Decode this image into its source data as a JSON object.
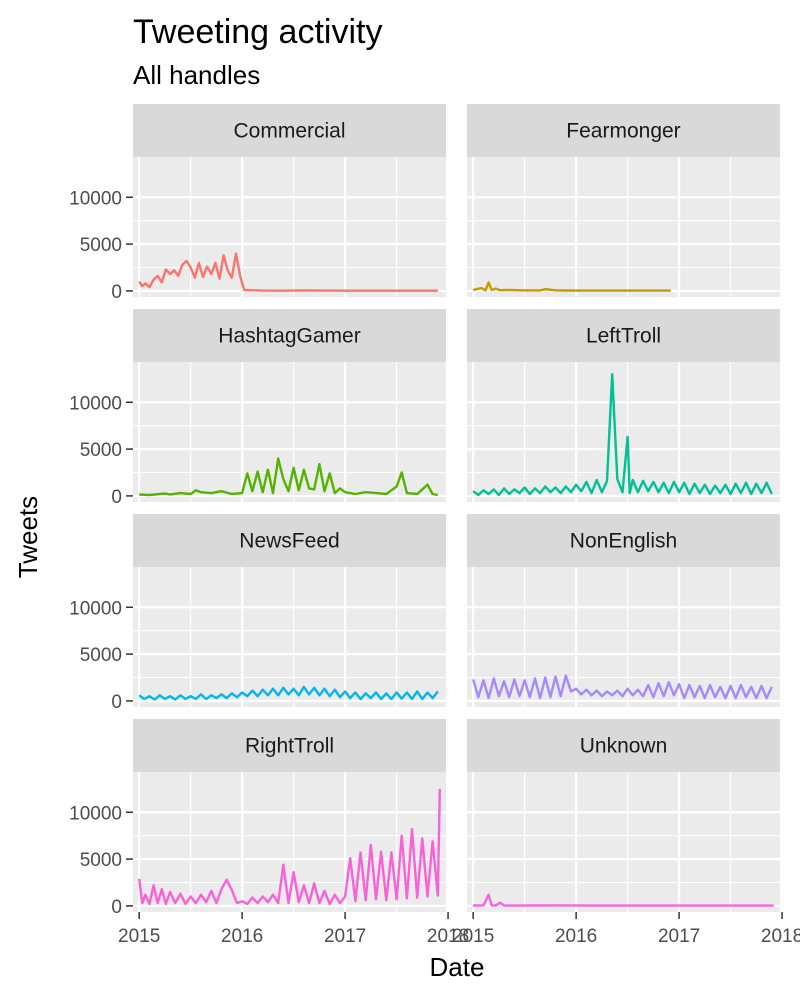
{
  "chart_data": {
    "type": "line",
    "title": "Tweeting activity",
    "subtitle": "All handles",
    "xlabel": "Date",
    "ylabel": "Tweets",
    "xlim": [
      2014.94,
      2017.98
    ],
    "ylim": [
      -650,
      14300
    ],
    "x_ticks": [
      2015,
      2016,
      2017,
      2018
    ],
    "x_tick_labels": [
      "2015",
      "2016",
      "2017",
      "2018"
    ],
    "y_ticks": [
      0,
      5000,
      10000
    ],
    "y_tick_labels": [
      "0",
      "5000",
      "10000"
    ],
    "grid": true,
    "legend": "none",
    "facet_layout": {
      "cols": 2,
      "rows": 4
    },
    "series": [
      {
        "name": "Commercial",
        "color": "#F8766D",
        "x": [
          2015.0,
          2015.03,
          2015.06,
          2015.1,
          2015.14,
          2015.18,
          2015.22,
          2015.26,
          2015.3,
          2015.34,
          2015.38,
          2015.42,
          2015.46,
          2015.5,
          2015.54,
          2015.58,
          2015.62,
          2015.66,
          2015.7,
          2015.74,
          2015.78,
          2015.82,
          2015.86,
          2015.9,
          2015.94,
          2015.98,
          2016.02,
          2016.2,
          2016.4,
          2016.6,
          2016.8,
          2017.0,
          2017.2,
          2017.4,
          2017.6,
          2017.8,
          2017.9
        ],
        "y": [
          1000,
          500,
          800,
          400,
          1200,
          1600,
          900,
          2300,
          1800,
          2200,
          1600,
          2800,
          3200,
          2500,
          1400,
          3000,
          1500,
          2600,
          1800,
          3000,
          1300,
          3800,
          2200,
          1400,
          4000,
          1600,
          100,
          30,
          20,
          60,
          30,
          20,
          20,
          20,
          20,
          20,
          20
        ]
      },
      {
        "name": "Fearmonger",
        "color": "#C49A00",
        "x": [
          2015.0,
          2015.08,
          2015.12,
          2015.15,
          2015.18,
          2015.22,
          2015.26,
          2015.35,
          2015.5,
          2015.65,
          2015.7,
          2015.8,
          2015.9,
          2016.0,
          2016.2,
          2016.4,
          2016.6,
          2016.8,
          2016.92
        ],
        "y": [
          100,
          300,
          60,
          900,
          100,
          250,
          80,
          100,
          50,
          60,
          180,
          70,
          40,
          30,
          30,
          30,
          30,
          30,
          30
        ]
      },
      {
        "name": "HashtagGamer",
        "color": "#53B400",
        "x": [
          2015.0,
          2015.1,
          2015.2,
          2015.25,
          2015.3,
          2015.4,
          2015.5,
          2015.55,
          2015.6,
          2015.7,
          2015.8,
          2015.9,
          2016.0,
          2016.05,
          2016.1,
          2016.15,
          2016.2,
          2016.25,
          2016.3,
          2016.35,
          2016.4,
          2016.45,
          2016.5,
          2016.55,
          2016.6,
          2016.65,
          2016.7,
          2016.75,
          2016.8,
          2016.85,
          2016.9,
          2016.95,
          2017.0,
          2017.1,
          2017.2,
          2017.3,
          2017.4,
          2017.5,
          2017.55,
          2017.6,
          2017.7,
          2017.8,
          2017.85,
          2017.9
        ],
        "y": [
          150,
          100,
          200,
          250,
          150,
          300,
          200,
          600,
          400,
          300,
          500,
          200,
          300,
          2400,
          500,
          2600,
          400,
          2800,
          300,
          4000,
          1800,
          500,
          3000,
          600,
          2800,
          800,
          700,
          3400,
          500,
          2400,
          300,
          800,
          400,
          200,
          400,
          300,
          200,
          1000,
          2500,
          300,
          200,
          1200,
          200,
          100
        ]
      },
      {
        "name": "LeftTroll",
        "color": "#00C094",
        "x": [
          2015.0,
          2015.05,
          2015.1,
          2015.15,
          2015.2,
          2015.25,
          2015.3,
          2015.35,
          2015.4,
          2015.45,
          2015.5,
          2015.55,
          2015.6,
          2015.65,
          2015.7,
          2015.75,
          2015.8,
          2015.85,
          2015.9,
          2015.95,
          2016.0,
          2016.05,
          2016.1,
          2016.15,
          2016.2,
          2016.25,
          2016.3,
          2016.35,
          2016.4,
          2016.45,
          2016.5,
          2016.52,
          2016.55,
          2016.6,
          2016.65,
          2016.7,
          2016.75,
          2016.8,
          2016.85,
          2016.9,
          2016.95,
          2017.0,
          2017.05,
          2017.1,
          2017.15,
          2017.2,
          2017.25,
          2017.3,
          2017.35,
          2017.4,
          2017.45,
          2017.5,
          2017.55,
          2017.6,
          2017.65,
          2017.7,
          2017.75,
          2017.8,
          2017.85,
          2017.9
        ],
        "y": [
          500,
          100,
          600,
          200,
          700,
          100,
          800,
          200,
          700,
          300,
          900,
          200,
          800,
          300,
          1000,
          400,
          900,
          300,
          1000,
          400,
          1200,
          500,
          1500,
          300,
          1700,
          400,
          1600,
          13000,
          1800,
          400,
          6300,
          300,
          1700,
          400,
          1600,
          500,
          1500,
          400,
          1400,
          300,
          1500,
          400,
          1400,
          200,
          1300,
          300,
          1200,
          200,
          1100,
          300,
          1200,
          200,
          1300,
          300,
          1400,
          200,
          1300,
          300,
          1400,
          200
        ]
      },
      {
        "name": "NewsFeed",
        "color": "#00B6EB",
        "x": [
          2015.0,
          2015.05,
          2015.1,
          2015.15,
          2015.2,
          2015.25,
          2015.3,
          2015.35,
          2015.4,
          2015.45,
          2015.5,
          2015.55,
          2015.6,
          2015.65,
          2015.7,
          2015.75,
          2015.8,
          2015.85,
          2015.9,
          2015.95,
          2016.0,
          2016.05,
          2016.1,
          2016.15,
          2016.2,
          2016.25,
          2016.3,
          2016.35,
          2016.4,
          2016.45,
          2016.5,
          2016.55,
          2016.6,
          2016.65,
          2016.7,
          2016.75,
          2016.8,
          2016.85,
          2016.9,
          2016.95,
          2017.0,
          2017.05,
          2017.1,
          2017.15,
          2017.2,
          2017.25,
          2017.3,
          2017.35,
          2017.4,
          2017.45,
          2017.5,
          2017.55,
          2017.6,
          2017.65,
          2017.7,
          2017.75,
          2017.8,
          2017.85,
          2017.9
        ],
        "y": [
          600,
          200,
          500,
          150,
          600,
          200,
          500,
          150,
          600,
          200,
          500,
          200,
          700,
          200,
          600,
          300,
          700,
          300,
          800,
          400,
          900,
          500,
          1100,
          500,
          1200,
          600,
          1300,
          600,
          1400,
          700,
          1300,
          600,
          1500,
          700,
          1400,
          600,
          1300,
          500,
          1200,
          400,
          1000,
          300,
          900,
          200,
          800,
          300,
          900,
          200,
          800,
          200,
          900,
          250,
          900,
          200,
          1000,
          200,
          900,
          300,
          1000
        ]
      },
      {
        "name": "NonEnglish",
        "color": "#A58AFF",
        "x": [
          2015.0,
          2015.05,
          2015.1,
          2015.15,
          2015.2,
          2015.25,
          2015.3,
          2015.35,
          2015.4,
          2015.45,
          2015.5,
          2015.55,
          2015.6,
          2015.65,
          2015.7,
          2015.75,
          2015.8,
          2015.85,
          2015.9,
          2015.95,
          2016.0,
          2016.05,
          2016.1,
          2016.15,
          2016.2,
          2016.25,
          2016.3,
          2016.35,
          2016.4,
          2016.45,
          2016.5,
          2016.55,
          2016.6,
          2016.65,
          2016.7,
          2016.75,
          2016.8,
          2016.85,
          2016.9,
          2016.95,
          2017.0,
          2017.05,
          2017.1,
          2017.15,
          2017.2,
          2017.25,
          2017.3,
          2017.35,
          2017.4,
          2017.45,
          2017.5,
          2017.55,
          2017.6,
          2017.65,
          2017.7,
          2017.75,
          2017.8,
          2017.85,
          2017.9
        ],
        "y": [
          2300,
          400,
          2200,
          300,
          2400,
          500,
          2100,
          400,
          2300,
          500,
          2200,
          400,
          2400,
          300,
          2500,
          400,
          2600,
          500,
          2700,
          1000,
          1300,
          700,
          1200,
          600,
          1100,
          500,
          1000,
          600,
          1100,
          500,
          1300,
          600,
          1200,
          500,
          1700,
          400,
          1900,
          500,
          2000,
          600,
          1800,
          300,
          1700,
          400,
          1600,
          300,
          1700,
          400,
          1500,
          300,
          1600,
          300,
          1700,
          400,
          1500,
          300,
          1600,
          300,
          1500
        ]
      },
      {
        "name": "RightTroll",
        "color": "#FB61D7",
        "x": [
          2015.0,
          2015.03,
          2015.06,
          2015.1,
          2015.14,
          2015.18,
          2015.22,
          2015.26,
          2015.3,
          2015.35,
          2015.4,
          2015.45,
          2015.5,
          2015.55,
          2015.6,
          2015.65,
          2015.7,
          2015.75,
          2015.8,
          2015.85,
          2015.9,
          2015.95,
          2016.0,
          2016.05,
          2016.1,
          2016.15,
          2016.2,
          2016.25,
          2016.3,
          2016.35,
          2016.4,
          2016.45,
          2016.5,
          2016.55,
          2016.6,
          2016.65,
          2016.7,
          2016.75,
          2016.8,
          2016.85,
          2016.9,
          2016.95,
          2017.0,
          2017.05,
          2017.1,
          2017.15,
          2017.2,
          2017.25,
          2017.3,
          2017.35,
          2017.4,
          2017.45,
          2017.5,
          2017.55,
          2017.6,
          2017.65,
          2017.7,
          2017.75,
          2017.8,
          2017.85,
          2017.9,
          2017.92
        ],
        "y": [
          2900,
          300,
          1200,
          200,
          2200,
          300,
          1800,
          200,
          1500,
          300,
          1300,
          200,
          1000,
          300,
          1200,
          400,
          1600,
          300,
          1800,
          2800,
          1700,
          300,
          500,
          200,
          900,
          300,
          1000,
          400,
          1200,
          300,
          4400,
          300,
          3600,
          400,
          2200,
          300,
          2400,
          300,
          1600,
          200,
          1200,
          300,
          1000,
          5100,
          500,
          5700,
          600,
          6500,
          700,
          5800,
          600,
          5700,
          700,
          7500,
          800,
          8200,
          900,
          7200,
          1000,
          6900,
          1100,
          12500
        ]
      },
      {
        "name": "Unknown",
        "color": "#F564E3",
        "x": [
          2015.0,
          2015.1,
          2015.15,
          2015.18,
          2015.22,
          2015.26,
          2015.3,
          2015.4,
          2015.6,
          2015.8,
          2016.0,
          2016.2,
          2016.4,
          2016.6,
          2016.8,
          2017.0,
          2017.2,
          2017.4,
          2017.6,
          2017.8,
          2017.92
        ],
        "y": [
          40,
          60,
          1200,
          50,
          40,
          350,
          40,
          30,
          40,
          60,
          40,
          30,
          30,
          30,
          30,
          30,
          30,
          30,
          30,
          30,
          30
        ]
      }
    ]
  }
}
